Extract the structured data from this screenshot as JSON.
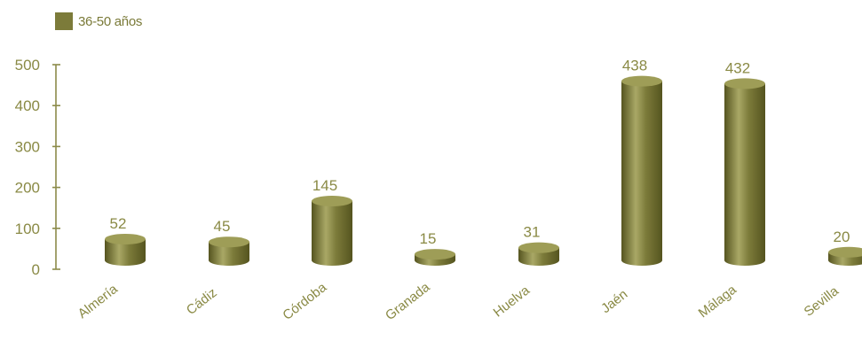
{
  "colors": {
    "bar": "#7c7b3a",
    "bar_light": "#a9a866",
    "bar_dark": "#55541f",
    "bar_top": "#9e9d57",
    "text": "#8a8a45",
    "axis": "#8c8b4a"
  },
  "chart_data": {
    "type": "bar",
    "style": "3d-cylinder",
    "categories": [
      "Almería",
      "Cádiz",
      "Córdoba",
      "Granada",
      "Huelva",
      "Jaén",
      "Málaga",
      "Sevilla"
    ],
    "series": [
      {
        "name": "36-50 años",
        "values": [
          52,
          45,
          145,
          15,
          31,
          438,
          432,
          20
        ]
      }
    ],
    "value_labels": [
      "52",
      "45",
      "145",
      "15",
      "31",
      "438",
      "432",
      "20"
    ],
    "ylim": [
      0,
      500
    ],
    "yticks": [
      0,
      100,
      200,
      300,
      400,
      500
    ],
    "ytick_labels": [
      "0",
      "100",
      "200",
      "300",
      "400",
      "500"
    ],
    "grid": false,
    "legend_position": "top-left",
    "title": "",
    "xlabel": "",
    "ylabel": ""
  }
}
